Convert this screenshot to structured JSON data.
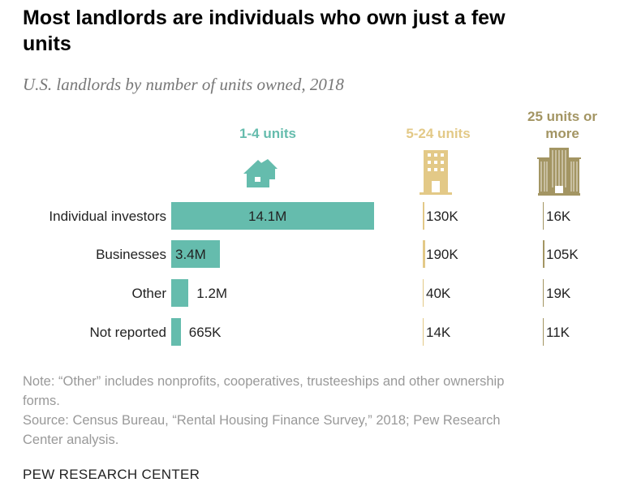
{
  "chart_data": {
    "type": "bar",
    "title": "Most landlords are individuals who own just a few units",
    "subtitle": "U.S. landlords by number of units owned, 2018",
    "categories": [
      "Individual investors",
      "Businesses",
      "Other",
      "Not reported"
    ],
    "series": [
      {
        "name": "1-4 units",
        "values": [
          14100000,
          3400000,
          1200000,
          665000
        ],
        "labels": [
          "14.1M",
          "3.4M",
          "1.2M",
          "665K"
        ],
        "color": "#65bcad"
      },
      {
        "name": "5-24 units",
        "values": [
          130000,
          190000,
          40000,
          14000
        ],
        "labels": [
          "130K",
          "190K",
          "40K",
          "14K"
        ],
        "color": "#e3c987"
      },
      {
        "name": "25 units or more",
        "values": [
          16000,
          105000,
          19000,
          11000
        ],
        "labels": [
          "16K",
          "105K",
          "19K",
          "11K"
        ],
        "color": "#a39563"
      }
    ],
    "note": "Note: “Other” includes nonprofits, cooperatives, trusteeships and other ownership forms.",
    "source": "Source: Census Bureau, “Rental Housing Finance Survey,” 2018; Pew Research Center analysis.",
    "brand": "PEW RESEARCH CENTER"
  }
}
